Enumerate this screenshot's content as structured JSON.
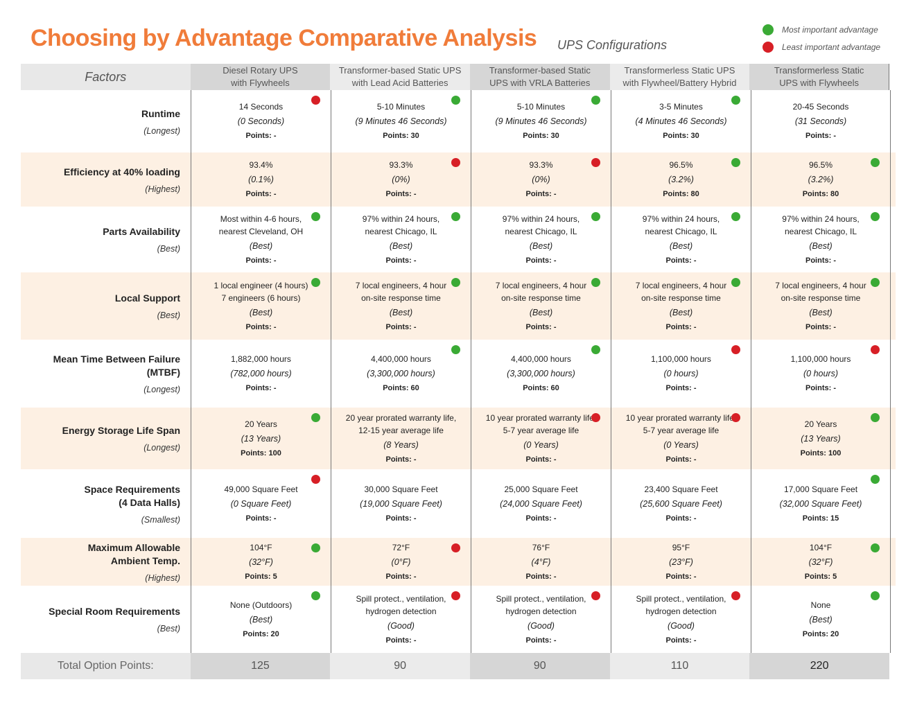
{
  "title": "Choosing by Advantage Comparative Analysis",
  "subtitle": "UPS Configurations",
  "legend": [
    {
      "color": "#3aaa35",
      "label": "Most important advantage"
    },
    {
      "color": "#d71f26",
      "label": "Least important advantage"
    }
  ],
  "colors": {
    "green": "#3aaa35",
    "red": "#d71f26",
    "accent": "#f07c3a",
    "row_alt": "#fdf0e3"
  },
  "factors_header": "Factors",
  "columns": [
    [
      "Diesel Rotary UPS",
      "with Flywheels"
    ],
    [
      "Transformer-based Static UPS",
      "with Lead Acid Batteries"
    ],
    [
      "Transformer-based Static",
      "UPS with VRLA Batteries"
    ],
    [
      "Transformerless Static UPS",
      "with Flywheel/Battery Hybrid"
    ],
    [
      "Transformerless Static",
      "UPS with Flywheels"
    ]
  ],
  "rows": [
    {
      "factor": [
        "Runtime"
      ],
      "criterion": "(Longest)",
      "cells": [
        {
          "lines": [
            "14 Seconds"
          ],
          "sub": "(0 Seconds)",
          "points": "Points: -",
          "dot": "red"
        },
        {
          "lines": [
            "5-10 Minutes"
          ],
          "sub": "(9 Minutes 46 Seconds)",
          "points": "Points: 30",
          "dot": "green"
        },
        {
          "lines": [
            "5-10 Minutes"
          ],
          "sub": "(9 Minutes 46 Seconds)",
          "points": "Points: 30",
          "dot": "green"
        },
        {
          "lines": [
            "3-5 Minutes"
          ],
          "sub": "(4 Minutes 46 Seconds)",
          "points": "Points: 30",
          "dot": "green"
        },
        {
          "lines": [
            "20-45 Seconds"
          ],
          "sub": "(31 Seconds)",
          "points": "Points: -",
          "dot": ""
        }
      ]
    },
    {
      "factor": [
        "Efficiency at 40% loading"
      ],
      "criterion": "(Highest)",
      "cells": [
        {
          "lines": [
            "93.4%"
          ],
          "sub": "(0.1%)",
          "points": "Points: -",
          "dot": ""
        },
        {
          "lines": [
            "93.3%"
          ],
          "sub": "(0%)",
          "points": "Points: -",
          "dot": "red"
        },
        {
          "lines": [
            "93.3%"
          ],
          "sub": "(0%)",
          "points": "Points: -",
          "dot": "red"
        },
        {
          "lines": [
            "96.5%"
          ],
          "sub": "(3.2%)",
          "points": "Points: 80",
          "dot": "green"
        },
        {
          "lines": [
            "96.5%"
          ],
          "sub": "(3.2%)",
          "points": "Points: 80",
          "dot": "green"
        }
      ]
    },
    {
      "factor": [
        "Parts Availability"
      ],
      "criterion": "(Best)",
      "cells": [
        {
          "lines": [
            "Most within 4-6 hours,",
            "nearest Cleveland, OH"
          ],
          "sub": "(Best)",
          "points": "Points: -",
          "dot": "green"
        },
        {
          "lines": [
            "97% within 24 hours,",
            "nearest Chicago, IL"
          ],
          "sub": "(Best)",
          "points": "Points: -",
          "dot": "green"
        },
        {
          "lines": [
            "97% within 24 hours,",
            "nearest Chicago, IL"
          ],
          "sub": "(Best)",
          "points": "Points: -",
          "dot": "green"
        },
        {
          "lines": [
            "97% within 24 hours,",
            "nearest Chicago, IL"
          ],
          "sub": "(Best)",
          "points": "Points: -",
          "dot": "green"
        },
        {
          "lines": [
            "97% within 24 hours,",
            "nearest Chicago, IL"
          ],
          "sub": "(Best)",
          "points": "Points: -",
          "dot": "green"
        }
      ]
    },
    {
      "factor": [
        "Local Support"
      ],
      "criterion": "(Best)",
      "cells": [
        {
          "lines": [
            "1 local engineer (4 hours)",
            "7 engineers (6 hours)"
          ],
          "sub": "(Best)",
          "points": "Points: -",
          "dot": "green"
        },
        {
          "lines": [
            "7 local engineers, 4 hour",
            "on-site response time"
          ],
          "sub": "(Best)",
          "points": "Points: -",
          "dot": "green"
        },
        {
          "lines": [
            "7 local engineers, 4 hour",
            "on-site response time"
          ],
          "sub": "(Best)",
          "points": "Points: -",
          "dot": "green"
        },
        {
          "lines": [
            "7 local engineers, 4 hour",
            "on-site response time"
          ],
          "sub": "(Best)",
          "points": "Points: -",
          "dot": "green"
        },
        {
          "lines": [
            "7 local engineers, 4 hour",
            "on-site response time"
          ],
          "sub": "(Best)",
          "points": "Points: -",
          "dot": "green"
        }
      ]
    },
    {
      "factor": [
        "Mean Time Between Failure",
        "(MTBF)"
      ],
      "criterion": "(Longest)",
      "cells": [
        {
          "lines": [
            "1,882,000 hours"
          ],
          "sub": "(782,000 hours)",
          "points": "Points: -",
          "dot": ""
        },
        {
          "lines": [
            "4,400,000 hours"
          ],
          "sub": "(3,300,000 hours)",
          "points": "Points: 60",
          "dot": "green"
        },
        {
          "lines": [
            "4,400,000 hours"
          ],
          "sub": "(3,300,000 hours)",
          "points": "Points: 60",
          "dot": "green"
        },
        {
          "lines": [
            "1,100,000 hours"
          ],
          "sub": "(0 hours)",
          "points": "Points: -",
          "dot": "red"
        },
        {
          "lines": [
            "1,100,000 hours"
          ],
          "sub": "(0 hours)",
          "points": "Points: -",
          "dot": "red"
        }
      ]
    },
    {
      "factor": [
        "Energy Storage Life Span"
      ],
      "criterion": "(Longest)",
      "cells": [
        {
          "lines": [
            "20 Years"
          ],
          "sub": "(13 Years)",
          "points": "Points: 100",
          "dot": "green"
        },
        {
          "lines": [
            "20 year prorated warranty life,",
            "12-15 year average life"
          ],
          "sub": "(8 Years)",
          "points": "Points: -",
          "dot": ""
        },
        {
          "lines": [
            "10 year prorated warranty life,",
            "5-7 year average life"
          ],
          "sub": "(0 Years)",
          "points": "Points: -",
          "dot": "red"
        },
        {
          "lines": [
            "10 year prorated warranty life,",
            "5-7 year average life"
          ],
          "sub": "(0 Years)",
          "points": "Points: -",
          "dot": "red"
        },
        {
          "lines": [
            "20 Years"
          ],
          "sub": "(13 Years)",
          "points": "Points: 100",
          "dot": "green"
        }
      ]
    },
    {
      "factor": [
        "Space Requirements",
        "(4 Data Halls)"
      ],
      "criterion": "(Smallest)",
      "cells": [
        {
          "lines": [
            "49,000 Square Feet"
          ],
          "sub": "(0 Square Feet)",
          "points": "Points: -",
          "dot": "red"
        },
        {
          "lines": [
            "30,000 Square Feet"
          ],
          "sub": "(19,000 Square Feet)",
          "points": "Points: -",
          "dot": ""
        },
        {
          "lines": [
            "25,000 Square Feet"
          ],
          "sub": "(24,000 Square Feet)",
          "points": "Points: -",
          "dot": ""
        },
        {
          "lines": [
            "23,400 Square Feet"
          ],
          "sub": "(25,600 Square Feet)",
          "points": "Points: -",
          "dot": ""
        },
        {
          "lines": [
            "17,000 Square Feet"
          ],
          "sub": "(32,000 Square Feet)",
          "points": "Points: 15",
          "dot": "green"
        }
      ]
    },
    {
      "factor": [
        "Maximum Allowable",
        "Ambient Temp."
      ],
      "criterion": "(Highest)",
      "cells": [
        {
          "lines": [
            "104°F"
          ],
          "sub": "(32°F)",
          "points": "Points: 5",
          "dot": "green"
        },
        {
          "lines": [
            "72°F"
          ],
          "sub": "(0°F)",
          "points": "Points: -",
          "dot": "red"
        },
        {
          "lines": [
            "76°F"
          ],
          "sub": "(4°F)",
          "points": "Points: -",
          "dot": ""
        },
        {
          "lines": [
            "95°F"
          ],
          "sub": "(23°F)",
          "points": "Points: -",
          "dot": ""
        },
        {
          "lines": [
            "104°F"
          ],
          "sub": "(32°F)",
          "points": "Points: 5",
          "dot": "green"
        }
      ]
    },
    {
      "factor": [
        "Special Room Requirements"
      ],
      "criterion": "(Best)",
      "cells": [
        {
          "lines": [
            "None (Outdoors)"
          ],
          "sub": "(Best)",
          "points": "Points: 20",
          "dot": "green"
        },
        {
          "lines": [
            "Spill protect., ventilation,",
            "hydrogen detection"
          ],
          "sub": "(Good)",
          "points": "Points: -",
          "dot": "red"
        },
        {
          "lines": [
            "Spill protect., ventilation,",
            "hydrogen detection"
          ],
          "sub": "(Good)",
          "points": "Points: -",
          "dot": "red"
        },
        {
          "lines": [
            "Spill protect., ventilation,",
            "hydrogen detection"
          ],
          "sub": "(Good)",
          "points": "Points: -",
          "dot": "red"
        },
        {
          "lines": [
            "None"
          ],
          "sub": "(Best)",
          "points": "Points: 20",
          "dot": "green"
        }
      ]
    }
  ],
  "totals_label": "Total Option Points:",
  "totals": [
    "125",
    "90",
    "90",
    "110",
    "220"
  ]
}
